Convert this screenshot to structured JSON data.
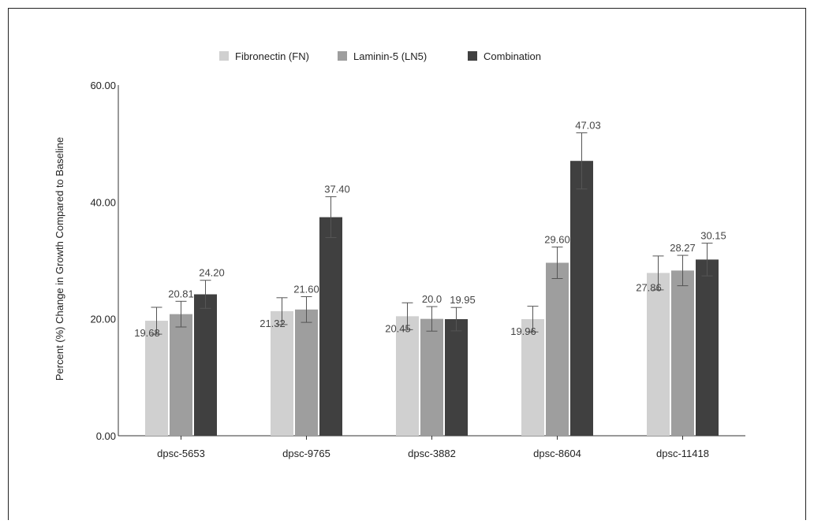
{
  "chart_data": {
    "type": "bar",
    "title": "",
    "xlabel": "",
    "ylabel": "Percent (%) Change in Growth Compared to Baseline",
    "ylim": [
      0,
      60
    ],
    "yticks": [
      "0.00",
      "20.00",
      "40.00",
      "60.00"
    ],
    "grid": false,
    "legend_position": "top",
    "categories": [
      "dpsc-5653",
      "dpsc-9765",
      "dpsc-3882",
      "dpsc-8604",
      "dpsc-11418"
    ],
    "series": [
      {
        "name": "Fibronectin (FN)",
        "color": "#d0d0d0",
        "values": [
          19.68,
          21.32,
          20.45,
          19.96,
          27.86
        ],
        "labels": [
          "19.68",
          "21.32",
          "20.45",
          "19.96",
          "27.86"
        ],
        "error": [
          2.3,
          2.3,
          2.3,
          2.2,
          2.9
        ]
      },
      {
        "name": "Laminin-5 (LN5)",
        "color": "#9e9e9e",
        "values": [
          20.81,
          21.6,
          20.0,
          29.6,
          28.27
        ],
        "labels": [
          "20.81",
          "21.60",
          "20.0",
          "29.60",
          "28.27"
        ],
        "error": [
          2.2,
          2.2,
          2.1,
          2.7,
          2.6
        ]
      },
      {
        "name": "Combination",
        "color": "#404040",
        "values": [
          24.2,
          37.4,
          19.95,
          47.03,
          30.15
        ],
        "labels": [
          "24.20",
          "37.40",
          "19.95",
          "47.03",
          "30.15"
        ],
        "error": [
          2.4,
          3.5,
          2.0,
          4.8,
          2.8
        ]
      }
    ]
  }
}
